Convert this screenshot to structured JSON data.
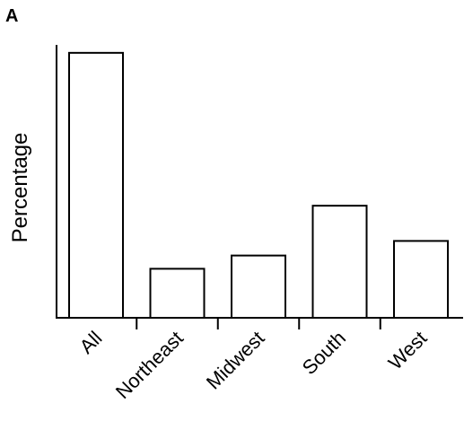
{
  "panel_label": "A",
  "chart_data": {
    "type": "bar",
    "title": "",
    "xlabel": "",
    "ylabel": "Percentage",
    "categories": [
      "All",
      "Northeast",
      "Midwest",
      "South",
      "West"
    ],
    "values": [
      100,
      18.5,
      23.5,
      42.3,
      29
    ],
    "ylim": [
      0,
      103
    ],
    "grid": false,
    "legend": "none",
    "bar_fill": "#ffffff",
    "bar_stroke": "#000000"
  }
}
